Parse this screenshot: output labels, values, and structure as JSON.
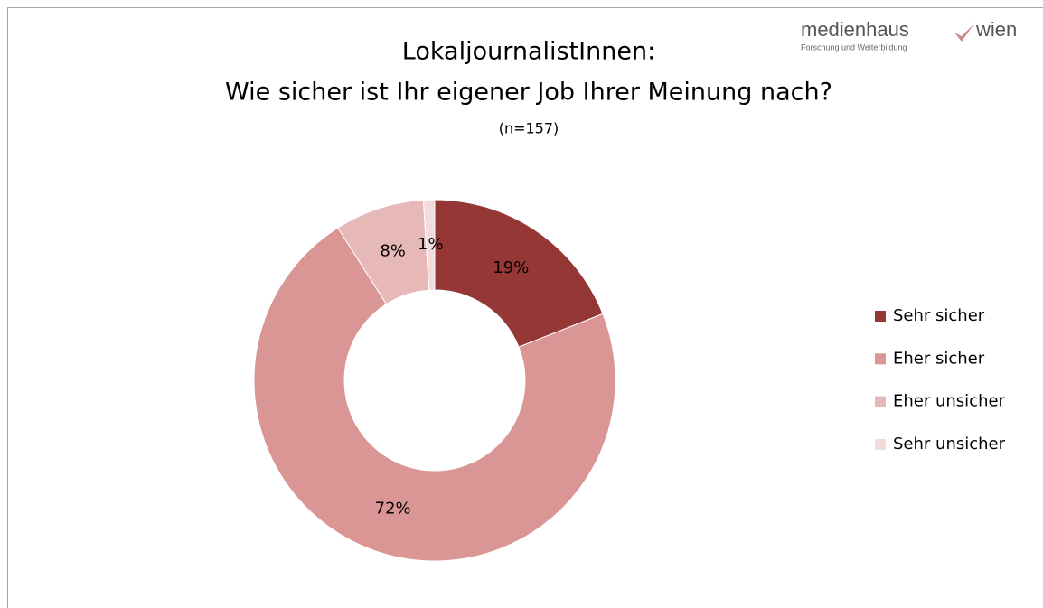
{
  "chart_data": {
    "type": "donut",
    "title": [
      "LokaljournalistInnen:",
      "Wie sicher ist Ihr eigener Job Ihrer Meinung nach?"
    ],
    "subtitle": "(n=157)",
    "categories": [
      "Sehr sicher",
      "Eher sicher",
      "Eher unsicher",
      "Sehr unsicher"
    ],
    "values": [
      19,
      72,
      8,
      1
    ],
    "value_labels": [
      "19%",
      "72%",
      "8%",
      "1%"
    ],
    "colors": [
      "#953735",
      "#d99694",
      "#e6b9b8",
      "#f2dcdb"
    ],
    "legend": "right"
  },
  "logo": {
    "name": "medienhaus",
    "name2": "wien",
    "tagline": "Forschung und Weiterbildung"
  }
}
